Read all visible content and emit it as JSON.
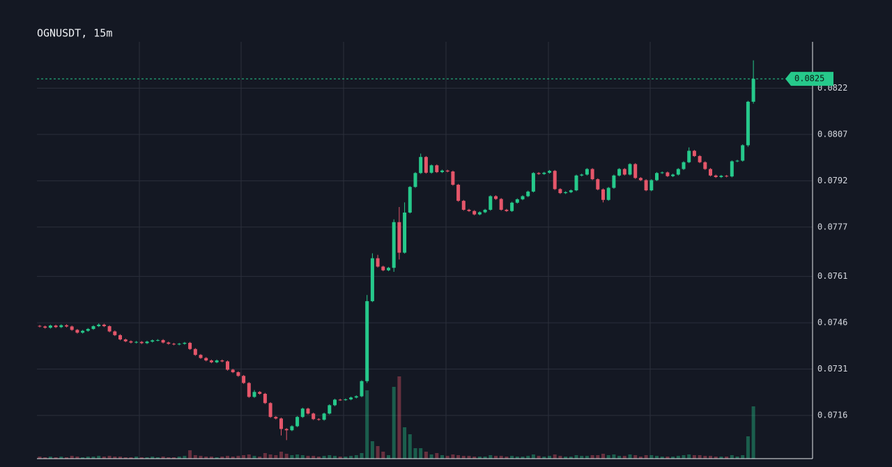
{
  "chart_data": {
    "type": "candlestick",
    "title": "OGNUSDT, 15m",
    "up_color": "#26c98b",
    "down_color": "#e5566a",
    "ylim": [
      0.0702,
      0.0837
    ],
    "yticks": [
      0.0716,
      0.0731,
      0.0746,
      0.0761,
      0.0777,
      0.0792,
      0.0807,
      0.0822
    ],
    "grid": true,
    "last_price": 0.0825,
    "candles": [
      [
        0.0745,
        0.07453,
        0.07445,
        0.07448
      ],
      [
        0.07448,
        0.07451,
        0.07441,
        0.07444
      ],
      [
        0.07444,
        0.07454,
        0.07441,
        0.07451
      ],
      [
        0.07451,
        0.07454,
        0.07443,
        0.07446
      ],
      [
        0.07446,
        0.07455,
        0.07443,
        0.07452
      ],
      [
        0.07452,
        0.07455,
        0.07445,
        0.07448
      ],
      [
        0.07448,
        0.07451,
        0.07434,
        0.07437
      ],
      [
        0.07437,
        0.0744,
        0.07425,
        0.07428
      ],
      [
        0.07428,
        0.07437,
        0.07425,
        0.07434
      ],
      [
        0.07434,
        0.07443,
        0.07431,
        0.0744
      ],
      [
        0.0744,
        0.07452,
        0.07437,
        0.07449
      ],
      [
        0.07449,
        0.07458,
        0.07446,
        0.07454
      ],
      [
        0.07454,
        0.07457,
        0.07446,
        0.07449
      ],
      [
        0.07449,
        0.07452,
        0.07429,
        0.07432
      ],
      [
        0.07432,
        0.07435,
        0.07417,
        0.0742
      ],
      [
        0.0742,
        0.07423,
        0.07403,
        0.07406
      ],
      [
        0.07406,
        0.07409,
        0.07397,
        0.074
      ],
      [
        0.074,
        0.07403,
        0.07393,
        0.07396
      ],
      [
        0.07396,
        0.07401,
        0.07393,
        0.07398
      ],
      [
        0.07398,
        0.07401,
        0.07391,
        0.07394
      ],
      [
        0.07394,
        0.07402,
        0.07391,
        0.07399
      ],
      [
        0.07399,
        0.07406,
        0.07396,
        0.07403
      ],
      [
        0.07403,
        0.07407,
        0.074,
        0.07404
      ],
      [
        0.07404,
        0.07407,
        0.07393,
        0.07396
      ],
      [
        0.07396,
        0.07399,
        0.07389,
        0.07392
      ],
      [
        0.07392,
        0.07395,
        0.07387,
        0.0739
      ],
      [
        0.0739,
        0.07395,
        0.07387,
        0.07392
      ],
      [
        0.07392,
        0.07398,
        0.07389,
        0.07395
      ],
      [
        0.07395,
        0.07398,
        0.07372,
        0.07375
      ],
      [
        0.07375,
        0.07378,
        0.07353,
        0.07356
      ],
      [
        0.07356,
        0.07359,
        0.07343,
        0.07346
      ],
      [
        0.07346,
        0.07349,
        0.07335,
        0.07338
      ],
      [
        0.07338,
        0.07341,
        0.07329,
        0.07332
      ],
      [
        0.07332,
        0.07341,
        0.07329,
        0.07338
      ],
      [
        0.07338,
        0.07341,
        0.07332,
        0.07335
      ],
      [
        0.07335,
        0.07338,
        0.07305,
        0.07308
      ],
      [
        0.07308,
        0.07311,
        0.07297,
        0.073
      ],
      [
        0.073,
        0.07303,
        0.07285,
        0.07288
      ],
      [
        0.07288,
        0.07291,
        0.07262,
        0.07265
      ],
      [
        0.07265,
        0.07268,
        0.07217,
        0.0722
      ],
      [
        0.0722,
        0.07242,
        0.07217,
        0.07236
      ],
      [
        0.07236,
        0.07239,
        0.07227,
        0.0723
      ],
      [
        0.0723,
        0.07233,
        0.07197,
        0.072
      ],
      [
        0.072,
        0.07203,
        0.07152,
        0.07155
      ],
      [
        0.07155,
        0.07158,
        0.07147,
        0.0715
      ],
      [
        0.0715,
        0.07153,
        0.07095,
        0.07116
      ],
      [
        0.07116,
        0.07119,
        0.0708,
        0.07112
      ],
      [
        0.07112,
        0.07128,
        0.07109,
        0.07125
      ],
      [
        0.07125,
        0.07158,
        0.07122,
        0.07155
      ],
      [
        0.07155,
        0.07185,
        0.07152,
        0.07182
      ],
      [
        0.07182,
        0.07185,
        0.07163,
        0.07166
      ],
      [
        0.07166,
        0.07169,
        0.07145,
        0.07148
      ],
      [
        0.07148,
        0.07151,
        0.07143,
        0.07146
      ],
      [
        0.07146,
        0.07169,
        0.07143,
        0.07166
      ],
      [
        0.07166,
        0.07196,
        0.07163,
        0.07193
      ],
      [
        0.07193,
        0.07214,
        0.0719,
        0.07211
      ],
      [
        0.07211,
        0.07214,
        0.07207,
        0.0721
      ],
      [
        0.0721,
        0.07215,
        0.07207,
        0.07212
      ],
      [
        0.07212,
        0.07221,
        0.07209,
        0.07218
      ],
      [
        0.07218,
        0.07225,
        0.07215,
        0.07222
      ],
      [
        0.07222,
        0.07274,
        0.07219,
        0.07271
      ],
      [
        0.07271,
        0.0755,
        0.07265,
        0.0753
      ],
      [
        0.0753,
        0.07685,
        0.07527,
        0.07669
      ],
      [
        0.07669,
        0.0768,
        0.07639,
        0.07642
      ],
      [
        0.07642,
        0.07645,
        0.07627,
        0.0763
      ],
      [
        0.0763,
        0.07641,
        0.07627,
        0.07638
      ],
      [
        0.07638,
        0.07795,
        0.07625,
        0.07786
      ],
      [
        0.07786,
        0.07835,
        0.07665,
        0.07687
      ],
      [
        0.07687,
        0.0785,
        0.07684,
        0.07817
      ],
      [
        0.07817,
        0.07903,
        0.07814,
        0.079
      ],
      [
        0.079,
        0.07948,
        0.07897,
        0.07945
      ],
      [
        0.07945,
        0.08008,
        0.07942,
        0.07997
      ],
      [
        0.07997,
        0.08,
        0.07943,
        0.07946
      ],
      [
        0.07946,
        0.07973,
        0.07943,
        0.0797
      ],
      [
        0.0797,
        0.07973,
        0.07945,
        0.07948
      ],
      [
        0.07948,
        0.07956,
        0.07945,
        0.07953
      ],
      [
        0.07953,
        0.07956,
        0.07947,
        0.0795
      ],
      [
        0.0795,
        0.07953,
        0.07904,
        0.07907
      ],
      [
        0.07907,
        0.0791,
        0.07852,
        0.07855
      ],
      [
        0.07855,
        0.07858,
        0.07823,
        0.07826
      ],
      [
        0.07826,
        0.07829,
        0.07819,
        0.07822
      ],
      [
        0.07822,
        0.07825,
        0.07808,
        0.07811
      ],
      [
        0.07811,
        0.07821,
        0.07808,
        0.07818
      ],
      [
        0.07818,
        0.07829,
        0.07815,
        0.07826
      ],
      [
        0.07826,
        0.07873,
        0.07823,
        0.0787
      ],
      [
        0.0787,
        0.07873,
        0.07858,
        0.07861
      ],
      [
        0.07861,
        0.07864,
        0.07823,
        0.07826
      ],
      [
        0.07826,
        0.07829,
        0.07819,
        0.07822
      ],
      [
        0.07822,
        0.07852,
        0.07819,
        0.07849
      ],
      [
        0.07849,
        0.07863,
        0.07846,
        0.0786
      ],
      [
        0.0786,
        0.07873,
        0.07857,
        0.0787
      ],
      [
        0.0787,
        0.07888,
        0.07867,
        0.07885
      ],
      [
        0.07885,
        0.07948,
        0.07882,
        0.07945
      ],
      [
        0.07945,
        0.07948,
        0.07939,
        0.07942
      ],
      [
        0.07942,
        0.07949,
        0.07939,
        0.07946
      ],
      [
        0.07946,
        0.07955,
        0.07943,
        0.07952
      ],
      [
        0.07952,
        0.07955,
        0.0789,
        0.07893
      ],
      [
        0.07893,
        0.07896,
        0.07877,
        0.0788
      ],
      [
        0.0788,
        0.07886,
        0.07877,
        0.07883
      ],
      [
        0.07883,
        0.07892,
        0.0788,
        0.07889
      ],
      [
        0.07889,
        0.0794,
        0.07886,
        0.07937
      ],
      [
        0.07937,
        0.07943,
        0.07934,
        0.0794
      ],
      [
        0.0794,
        0.07961,
        0.07937,
        0.07958
      ],
      [
        0.07958,
        0.07961,
        0.07922,
        0.07925
      ],
      [
        0.07925,
        0.07928,
        0.07889,
        0.07892
      ],
      [
        0.07892,
        0.07895,
        0.0785,
        0.07858
      ],
      [
        0.07858,
        0.079,
        0.07855,
        0.07897
      ],
      [
        0.07897,
        0.0794,
        0.07894,
        0.07937
      ],
      [
        0.07937,
        0.07961,
        0.07934,
        0.07958
      ],
      [
        0.07958,
        0.07961,
        0.07937,
        0.0794
      ],
      [
        0.0794,
        0.07977,
        0.07937,
        0.07974
      ],
      [
        0.07974,
        0.07977,
        0.07926,
        0.07929
      ],
      [
        0.07929,
        0.07932,
        0.07919,
        0.07922
      ],
      [
        0.07922,
        0.07925,
        0.07886,
        0.07889
      ],
      [
        0.07889,
        0.07925,
        0.07886,
        0.07922
      ],
      [
        0.07922,
        0.07948,
        0.07919,
        0.07945
      ],
      [
        0.07945,
        0.0795,
        0.07942,
        0.07947
      ],
      [
        0.07947,
        0.0795,
        0.07932,
        0.07935
      ],
      [
        0.07935,
        0.07943,
        0.07932,
        0.0794
      ],
      [
        0.0794,
        0.07961,
        0.07937,
        0.07958
      ],
      [
        0.07958,
        0.07983,
        0.07955,
        0.0798
      ],
      [
        0.0798,
        0.08028,
        0.07977,
        0.08017
      ],
      [
        0.08017,
        0.0802,
        0.07997,
        0.08
      ],
      [
        0.08,
        0.08003,
        0.07977,
        0.0798
      ],
      [
        0.0798,
        0.07983,
        0.07955,
        0.07958
      ],
      [
        0.07958,
        0.07961,
        0.07934,
        0.07937
      ],
      [
        0.07937,
        0.0794,
        0.07929,
        0.07932
      ],
      [
        0.07932,
        0.07939,
        0.07929,
        0.07936
      ],
      [
        0.07936,
        0.07939,
        0.07931,
        0.07934
      ],
      [
        0.07934,
        0.07986,
        0.07931,
        0.07983
      ],
      [
        0.07983,
        0.07988,
        0.0798,
        0.07985
      ],
      [
        0.07985,
        0.08038,
        0.07982,
        0.08035
      ],
      [
        0.08035,
        0.08179,
        0.0803,
        0.08176
      ],
      [
        0.08176,
        0.0831,
        0.0817,
        0.0825
      ]
    ],
    "volumes": [
      3,
      2,
      3,
      2,
      3,
      2,
      4,
      3,
      2,
      3,
      3,
      4,
      3,
      4,
      3,
      3,
      2,
      2,
      3,
      2,
      2,
      3,
      2,
      3,
      2,
      2,
      3,
      4,
      12,
      5,
      4,
      3,
      3,
      2,
      3,
      4,
      3,
      4,
      5,
      6,
      4,
      3,
      8,
      6,
      5,
      10,
      7,
      5,
      6,
      5,
      4,
      4,
      3,
      4,
      5,
      4,
      3,
      3,
      4,
      5,
      8,
      98,
      25,
      18,
      10,
      5,
      103,
      118,
      45,
      35,
      15,
      15,
      10,
      6,
      8,
      5,
      4,
      6,
      5,
      4,
      4,
      3,
      3,
      3,
      5,
      4,
      4,
      3,
      4,
      3,
      3,
      4,
      6,
      4,
      3,
      4,
      6,
      4,
      3,
      3,
      5,
      4,
      4,
      5,
      5,
      7,
      5,
      6,
      4,
      4,
      6,
      5,
      3,
      5,
      5,
      4,
      3,
      3,
      3,
      4,
      5,
      6,
      5,
      5,
      4,
      4,
      3,
      3,
      3,
      5,
      3,
      5,
      32,
      75
    ]
  }
}
